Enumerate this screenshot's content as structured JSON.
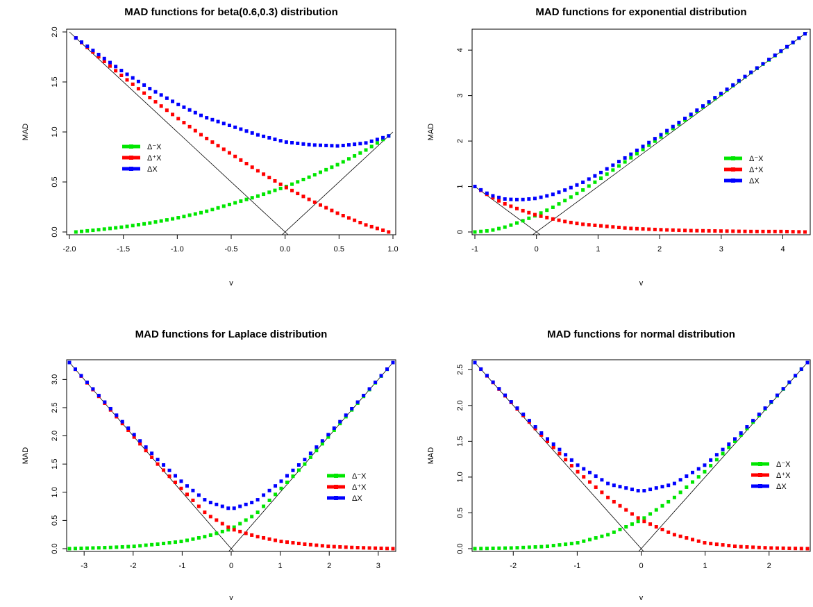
{
  "chart_data": [
    {
      "type": "scatter",
      "title": "MAD functions for beta(0.6,0.3) distribution",
      "xlabel": "v",
      "ylabel": "MAD",
      "xlim": [
        -2.0,
        1.0
      ],
      "ylim": [
        0.0,
        2.0
      ],
      "xticks": [
        -2.0,
        -1.5,
        -1.0,
        -0.5,
        0.0,
        0.5,
        1.0
      ],
      "xtick_labels": [
        "-2.0",
        "-1.5",
        "-1.0",
        "-0.5",
        "0.0",
        "0.5",
        "1.0"
      ],
      "yticks": [
        0.0,
        0.5,
        1.0,
        1.5,
        2.0
      ],
      "ytick_labels": [
        "0.0",
        "0.5",
        "1.0",
        "1.5",
        "2.0"
      ],
      "legend_position": "center-left",
      "grid": false,
      "reference_lines": "|v|",
      "series": [
        {
          "name": "Δ⁻X",
          "color": "#00e600",
          "x": [
            -1.94,
            -1.75,
            -1.5,
            -1.25,
            -1.0,
            -0.75,
            -0.5,
            -0.25,
            0.0,
            0.25,
            0.5,
            0.75,
            0.96
          ],
          "y": [
            0.0,
            0.02,
            0.05,
            0.09,
            0.14,
            0.2,
            0.28,
            0.36,
            0.45,
            0.56,
            0.68,
            0.82,
            0.96
          ]
        },
        {
          "name": "Δ⁺X",
          "color": "#ff0000",
          "x": [
            -1.94,
            -1.75,
            -1.5,
            -1.25,
            -1.0,
            -0.75,
            -0.5,
            -0.25,
            0.0,
            0.25,
            0.5,
            0.75,
            0.96
          ],
          "y": [
            1.94,
            1.77,
            1.55,
            1.34,
            1.14,
            0.95,
            0.78,
            0.61,
            0.45,
            0.31,
            0.18,
            0.07,
            0.0
          ]
        },
        {
          "name": "ΔX",
          "color": "#0000ff",
          "x": [
            -1.94,
            -1.75,
            -1.5,
            -1.25,
            -1.0,
            -0.75,
            -0.5,
            -0.25,
            0.0,
            0.25,
            0.5,
            0.75,
            0.96
          ],
          "y": [
            1.94,
            1.79,
            1.6,
            1.43,
            1.28,
            1.15,
            1.06,
            0.97,
            0.9,
            0.87,
            0.86,
            0.89,
            0.96
          ]
        }
      ]
    },
    {
      "type": "scatter",
      "title": "MAD functions for exponential distribution",
      "xlabel": "v",
      "ylabel": "MAD",
      "xlim": [
        -1.0,
        4.4
      ],
      "ylim": [
        0.0,
        4.4
      ],
      "xticks": [
        -1,
        0,
        1,
        2,
        3,
        4
      ],
      "xtick_labels": [
        "-1",
        "0",
        "1",
        "2",
        "3",
        "4"
      ],
      "yticks": [
        0,
        1,
        2,
        3,
        4
      ],
      "ytick_labels": [
        "0",
        "1",
        "2",
        "3",
        "4"
      ],
      "legend_position": "center-right",
      "grid": false,
      "reference_lines": "|v|",
      "series": [
        {
          "name": "Δ⁻X",
          "color": "#00e600",
          "x": [
            -1.0,
            -0.75,
            -0.5,
            -0.25,
            0.0,
            0.25,
            0.5,
            0.75,
            1.0,
            1.5,
            2.0,
            2.5,
            3.0,
            3.5,
            4.0,
            4.36
          ],
          "y": [
            0.0,
            0.03,
            0.11,
            0.23,
            0.37,
            0.53,
            0.72,
            0.92,
            1.14,
            1.6,
            2.07,
            2.55,
            3.03,
            3.52,
            4.0,
            4.36
          ]
        },
        {
          "name": "Δ⁺X",
          "color": "#ff0000",
          "x": [
            -1.0,
            -0.75,
            -0.5,
            -0.25,
            0.0,
            0.25,
            0.5,
            0.75,
            1.0,
            1.5,
            2.0,
            2.5,
            3.0,
            3.5,
            4.0,
            4.36
          ],
          "y": [
            1.0,
            0.78,
            0.61,
            0.48,
            0.37,
            0.29,
            0.22,
            0.17,
            0.14,
            0.08,
            0.05,
            0.03,
            0.02,
            0.01,
            0.01,
            0.0
          ]
        },
        {
          "name": "ΔX",
          "color": "#0000ff",
          "x": [
            -1.0,
            -0.75,
            -0.5,
            -0.25,
            0.0,
            0.25,
            0.5,
            0.75,
            1.0,
            1.5,
            2.0,
            2.5,
            3.0,
            3.5,
            4.0,
            4.36
          ],
          "y": [
            1.0,
            0.81,
            0.72,
            0.71,
            0.74,
            0.82,
            0.94,
            1.09,
            1.27,
            1.68,
            2.12,
            2.58,
            3.05,
            3.53,
            4.01,
            4.36
          ]
        }
      ]
    },
    {
      "type": "scatter",
      "title": "MAD functions for Laplace distribution",
      "xlabel": "v",
      "ylabel": "MAD",
      "xlim": [
        -3.3,
        3.3
      ],
      "ylim": [
        0.0,
        3.3
      ],
      "xticks": [
        -3,
        -2,
        -1,
        0,
        1,
        2,
        3
      ],
      "xtick_labels": [
        "-3",
        "-2",
        "-1",
        "0",
        "1",
        "2",
        "3"
      ],
      "yticks": [
        0.0,
        0.5,
        1.0,
        1.5,
        2.0,
        2.5,
        3.0
      ],
      "ytick_labels": [
        "0.0",
        "0.5",
        "1.0",
        "1.5",
        "2.0",
        "2.5",
        "3.0"
      ],
      "legend_position": "center-right",
      "grid": false,
      "reference_lines": "|v|",
      "series": [
        {
          "name": "Δ⁻X",
          "color": "#00e600",
          "x": [
            -3.3,
            -2.5,
            -2.0,
            -1.5,
            -1.0,
            -0.5,
            0.0,
            0.5,
            1.0,
            1.5,
            2.0,
            2.5,
            3.3
          ],
          "y": [
            0.0,
            0.02,
            0.04,
            0.08,
            0.13,
            0.22,
            0.35,
            0.61,
            1.05,
            1.5,
            2.0,
            2.5,
            3.3
          ]
        },
        {
          "name": "Δ⁺X",
          "color": "#ff0000",
          "x": [
            -3.3,
            -2.5,
            -2.0,
            -1.5,
            -1.0,
            -0.5,
            0.0,
            0.5,
            1.0,
            1.5,
            2.0,
            2.5,
            3.3
          ],
          "y": [
            3.3,
            2.5,
            2.0,
            1.5,
            1.05,
            0.61,
            0.35,
            0.22,
            0.13,
            0.08,
            0.04,
            0.02,
            0.0
          ]
        },
        {
          "name": "ΔX",
          "color": "#0000ff",
          "x": [
            -3.3,
            -2.5,
            -2.0,
            -1.5,
            -1.0,
            -0.5,
            0.0,
            0.5,
            1.0,
            1.5,
            2.0,
            2.5,
            3.3
          ],
          "y": [
            3.3,
            2.52,
            2.04,
            1.58,
            1.18,
            0.84,
            0.7,
            0.84,
            1.18,
            1.58,
            2.04,
            2.52,
            3.3
          ]
        }
      ]
    },
    {
      "type": "scatter",
      "title": "MAD functions for normal distribution",
      "xlabel": "v",
      "ylabel": "MAD",
      "xlim": [
        -2.6,
        2.6
      ],
      "ylim": [
        0.0,
        2.6
      ],
      "xticks": [
        -2,
        -1,
        0,
        1,
        2
      ],
      "xtick_labels": [
        "-2",
        "-1",
        "0",
        "1",
        "2"
      ],
      "yticks": [
        0.0,
        0.5,
        1.0,
        1.5,
        2.0,
        2.5
      ],
      "ytick_labels": [
        "0.0",
        "0.5",
        "1.0",
        "1.5",
        "2.0",
        "2.5"
      ],
      "legend_position": "center-right",
      "grid": false,
      "reference_lines": "|v|",
      "series": [
        {
          "name": "Δ⁻X",
          "color": "#00e600",
          "x": [
            -2.6,
            -2.0,
            -1.5,
            -1.0,
            -0.5,
            0.0,
            0.5,
            1.0,
            1.5,
            2.0,
            2.6
          ],
          "y": [
            0.0,
            0.01,
            0.03,
            0.08,
            0.2,
            0.4,
            0.7,
            1.08,
            1.53,
            2.01,
            2.6
          ]
        },
        {
          "name": "Δ⁺X",
          "color": "#ff0000",
          "x": [
            -2.6,
            -2.0,
            -1.5,
            -1.0,
            -0.5,
            0.0,
            0.5,
            1.0,
            1.5,
            2.0,
            2.6
          ],
          "y": [
            2.6,
            2.01,
            1.53,
            1.08,
            0.7,
            0.4,
            0.2,
            0.08,
            0.03,
            0.01,
            0.0
          ]
        },
        {
          "name": "ΔX",
          "color": "#0000ff",
          "x": [
            -2.6,
            -2.0,
            -1.5,
            -1.0,
            -0.5,
            0.0,
            0.5,
            1.0,
            1.5,
            2.0,
            2.6
          ],
          "y": [
            2.6,
            2.02,
            1.56,
            1.17,
            0.9,
            0.8,
            0.9,
            1.17,
            1.56,
            2.02,
            2.6
          ]
        }
      ]
    }
  ]
}
